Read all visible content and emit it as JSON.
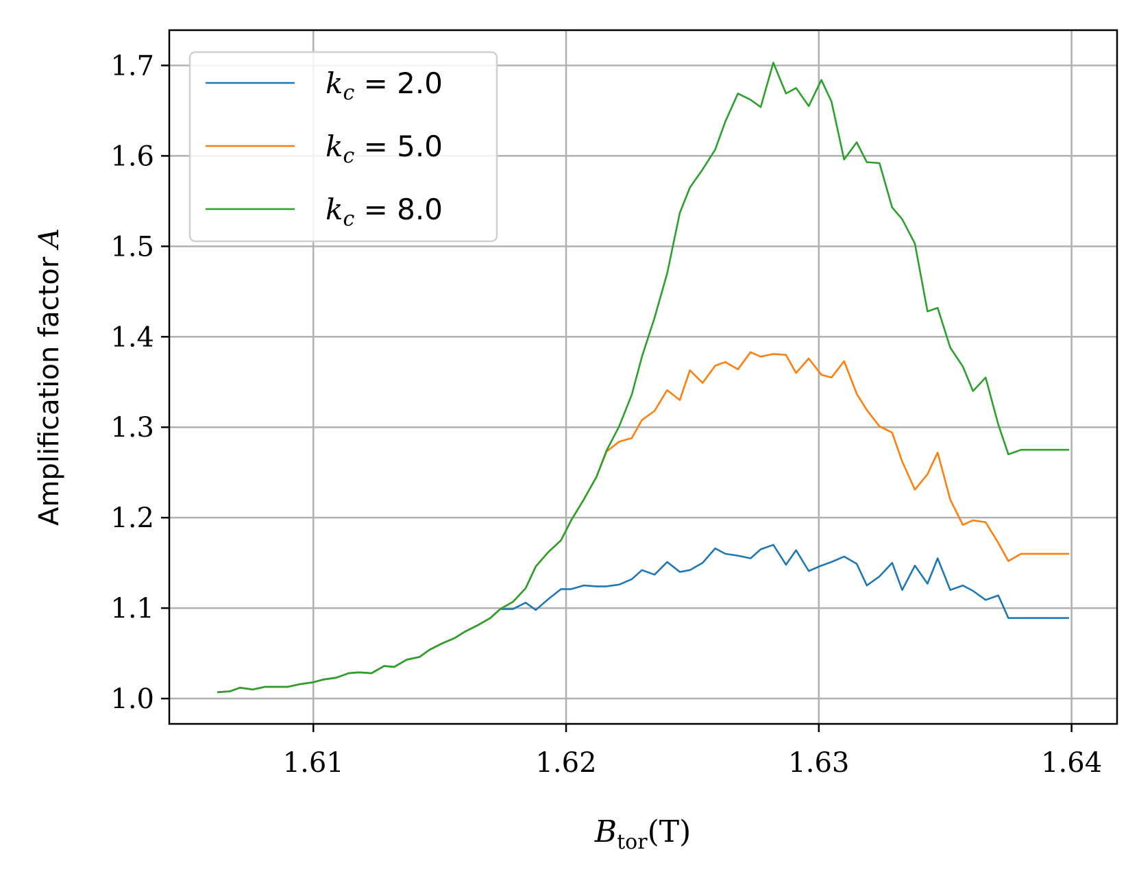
{
  "chart_data": {
    "type": "line",
    "title": "",
    "xlabel": "B_tor(T)",
    "xlabel_main": "B",
    "xlabel_sub": "tor",
    "xlabel_unit": "(T)",
    "ylabel": "Amplification factor A",
    "ylabel_text": "Amplification factor ",
    "ylabel_var": "A",
    "xlim": [
      1.6043,
      1.6418
    ],
    "ylim": [
      0.972,
      1.739
    ],
    "xticks": [
      1.61,
      1.62,
      1.63,
      1.64
    ],
    "xtick_labels": [
      "1.61",
      "1.62",
      "1.63",
      "1.64"
    ],
    "yticks": [
      1.0,
      1.1,
      1.2,
      1.3,
      1.4,
      1.5,
      1.6,
      1.7
    ],
    "ytick_labels": [
      "1.0",
      "1.1",
      "1.2",
      "1.3",
      "1.4",
      "1.5",
      "1.6",
      "1.7"
    ],
    "grid": true,
    "legend_position": "top-left",
    "x": [
      1.6062,
      1.6067,
      1.6071,
      1.6076,
      1.6081,
      1.6085,
      1.609,
      1.6095,
      1.61,
      1.6104,
      1.6109,
      1.6114,
      1.6118,
      1.6123,
      1.6128,
      1.6132,
      1.6137,
      1.6142,
      1.6146,
      1.6151,
      1.6156,
      1.616,
      1.6165,
      1.617,
      1.6174,
      1.6179,
      1.6184,
      1.6188,
      1.6193,
      1.6198,
      1.6202,
      1.6207,
      1.6212,
      1.6216,
      1.6221,
      1.6226,
      1.623,
      1.6235,
      1.624,
      1.6245,
      1.6249,
      1.6254,
      1.6259,
      1.6263,
      1.6268,
      1.6273,
      1.6277,
      1.6282,
      1.6287,
      1.6291,
      1.6296,
      1.6301,
      1.6305,
      1.631,
      1.6315,
      1.6319,
      1.6324,
      1.6329,
      1.6333,
      1.6338,
      1.6343,
      1.6347,
      1.6352,
      1.6357,
      1.6361,
      1.6366,
      1.6371,
      1.6375,
      1.638,
      1.6385,
      1.639,
      1.6394,
      1.6399
    ],
    "series": [
      {
        "name": "k_c = 2.0",
        "color": "#1f77b4",
        "values": [
          1.007,
          1.008,
          1.012,
          1.01,
          1.013,
          1.013,
          1.013,
          1.016,
          1.018,
          1.021,
          1.023,
          1.028,
          1.029,
          1.028,
          1.036,
          1.035,
          1.043,
          1.046,
          1.054,
          1.061,
          1.067,
          1.074,
          1.081,
          1.089,
          1.099,
          1.099,
          1.106,
          1.098,
          1.11,
          1.121,
          1.121,
          1.125,
          1.124,
          1.124,
          1.126,
          1.132,
          1.142,
          1.137,
          1.151,
          1.14,
          1.142,
          1.15,
          1.166,
          1.16,
          1.158,
          1.155,
          1.165,
          1.17,
          1.148,
          1.164,
          1.141,
          1.147,
          1.151,
          1.157,
          1.149,
          1.125,
          1.135,
          1.15,
          1.12,
          1.147,
          1.127,
          1.155,
          1.12,
          1.125,
          1.119,
          1.109,
          1.114,
          1.089,
          1.089,
          1.089,
          1.089,
          1.089,
          1.089
        ]
      },
      {
        "name": "k_c = 5.0",
        "color": "#ff7f0e",
        "values": [
          1.007,
          1.008,
          1.012,
          1.01,
          1.013,
          1.013,
          1.013,
          1.016,
          1.018,
          1.021,
          1.023,
          1.028,
          1.029,
          1.028,
          1.036,
          1.035,
          1.043,
          1.046,
          1.054,
          1.061,
          1.067,
          1.074,
          1.081,
          1.089,
          1.099,
          1.107,
          1.122,
          1.146,
          1.162,
          1.175,
          1.197,
          1.22,
          1.245,
          1.273,
          1.284,
          1.288,
          1.308,
          1.318,
          1.341,
          1.33,
          1.363,
          1.349,
          1.368,
          1.372,
          1.364,
          1.383,
          1.378,
          1.381,
          1.38,
          1.36,
          1.376,
          1.358,
          1.355,
          1.373,
          1.337,
          1.319,
          1.301,
          1.294,
          1.262,
          1.231,
          1.248,
          1.272,
          1.22,
          1.192,
          1.197,
          1.195,
          1.172,
          1.152,
          1.16,
          1.16,
          1.16,
          1.16,
          1.16
        ]
      },
      {
        "name": "k_c = 8.0",
        "color": "#2ca02c",
        "values": [
          1.007,
          1.008,
          1.012,
          1.01,
          1.013,
          1.013,
          1.013,
          1.016,
          1.018,
          1.021,
          1.023,
          1.028,
          1.029,
          1.028,
          1.036,
          1.035,
          1.043,
          1.046,
          1.054,
          1.061,
          1.067,
          1.074,
          1.081,
          1.089,
          1.099,
          1.107,
          1.122,
          1.146,
          1.162,
          1.175,
          1.197,
          1.22,
          1.245,
          1.274,
          1.301,
          1.336,
          1.378,
          1.421,
          1.47,
          1.537,
          1.565,
          1.585,
          1.607,
          1.638,
          1.669,
          1.662,
          1.654,
          1.703,
          1.669,
          1.675,
          1.655,
          1.684,
          1.66,
          1.596,
          1.615,
          1.593,
          1.592,
          1.543,
          1.53,
          1.503,
          1.428,
          1.432,
          1.388,
          1.367,
          1.34,
          1.355,
          1.303,
          1.27,
          1.275,
          1.275,
          1.275,
          1.275,
          1.275
        ]
      }
    ]
  },
  "legend": {
    "entries": [
      {
        "var": "k",
        "sub": "c",
        "rest": " = 2.0"
      },
      {
        "var": "k",
        "sub": "c",
        "rest": " = 5.0"
      },
      {
        "var": "k",
        "sub": "c",
        "rest": " = 8.0"
      }
    ]
  }
}
